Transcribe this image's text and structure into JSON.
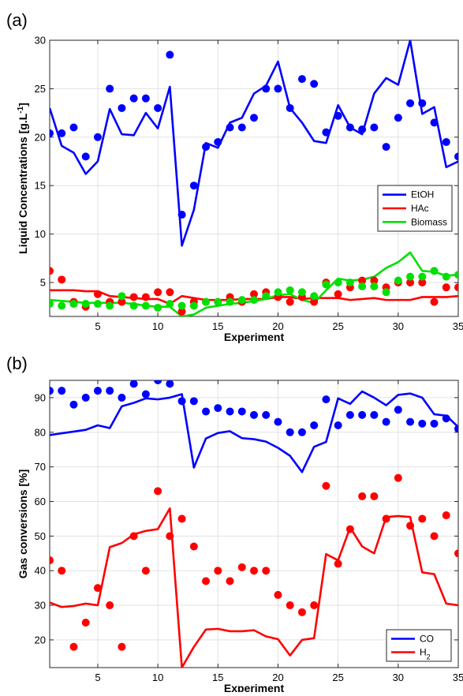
{
  "chart_data": [
    {
      "type": "line",
      "panel_label": "(a)",
      "xlabel": "Experiment",
      "ylabel": "Liquid Concentrations [g.L-1]",
      "ylabel_main": "Liquid Concentrations [g.L",
      "ylabel_sup": "-1",
      "ylabel_end": "]",
      "xlim": [
        1,
        35
      ],
      "ylim": [
        1.5,
        30
      ],
      "xticks": [
        5,
        10,
        15,
        20,
        25,
        30,
        35
      ],
      "yticks": [
        5,
        10,
        15,
        20,
        25,
        30
      ],
      "grid": true,
      "legend_position": "lower-right",
      "series": [
        {
          "name": "EtOH",
          "color": "#0000ff",
          "line": [
            23.0,
            19.1,
            18.4,
            16.2,
            17.5,
            22.9,
            20.3,
            20.2,
            22.5,
            20.9,
            25.2,
            8.8,
            12.5,
            19.4,
            18.9,
            21.5,
            22.0,
            24.5,
            25.3,
            27.8,
            23.0,
            21.5,
            19.6,
            19.4,
            23.3,
            21.0,
            20.3,
            24.5,
            26.1,
            25.4,
            30.0,
            22.4,
            23.1,
            16.9,
            17.5
          ],
          "points": [
            20.4,
            20.4,
            21.0,
            18.0,
            20.0,
            25.0,
            23.0,
            24.0,
            24.0,
            23.0,
            28.5,
            12.0,
            15.0,
            19.0,
            19.5,
            21.0,
            21.0,
            22.0,
            25.0,
            25.0,
            23.0,
            26.0,
            25.5,
            20.5,
            22.2,
            21.0,
            20.8,
            21.0,
            19.0,
            22.0,
            23.5,
            23.5,
            21.5,
            19.5,
            18.0
          ]
        },
        {
          "name": "HAc",
          "color": "#ff0000",
          "line": [
            4.2,
            4.2,
            4.2,
            4.1,
            4.1,
            3.6,
            3.5,
            3.4,
            3.3,
            3.3,
            2.8,
            3.6,
            3.4,
            3.2,
            3.2,
            3.2,
            3.3,
            3.3,
            3.3,
            3.5,
            3.5,
            3.3,
            3.4,
            3.4,
            3.4,
            3.2,
            3.3,
            3.4,
            3.2,
            3.2,
            3.2,
            3.5,
            3.5,
            3.5,
            3.6
          ],
          "points": [
            6.2,
            5.3,
            3.0,
            2.5,
            3.8,
            3.0,
            3.0,
            3.5,
            3.5,
            4.0,
            4.0,
            2.0,
            3.0,
            3.0,
            3.0,
            3.5,
            3.0,
            3.8,
            4.0,
            3.5,
            3.0,
            3.5,
            3.0,
            5.0,
            3.8,
            4.5,
            5.2,
            5.2,
            4.5,
            5.0,
            5.0,
            5.0,
            3.0,
            4.5,
            4.5
          ]
        },
        {
          "name": "Biomass",
          "color": "#00e000",
          "line": [
            3.2,
            3.1,
            3.0,
            2.9,
            2.9,
            2.9,
            2.9,
            2.8,
            2.6,
            2.5,
            2.5,
            1.5,
            1.7,
            2.4,
            2.6,
            2.8,
            2.9,
            3.1,
            3.3,
            3.7,
            3.8,
            3.2,
            2.9,
            4.2,
            5.4,
            5.2,
            5.3,
            5.6,
            6.5,
            7.1,
            8.1,
            6.2,
            6.1,
            5.7,
            5.8
          ],
          "points": [
            2.8,
            2.6,
            2.8,
            2.8,
            2.8,
            2.6,
            3.6,
            2.6,
            2.6,
            2.4,
            2.8,
            2.6,
            2.6,
            3.0,
            3.0,
            3.0,
            3.2,
            3.2,
            3.6,
            4.0,
            4.2,
            4.0,
            3.6,
            4.8,
            5.0,
            5.0,
            4.6,
            4.6,
            4.0,
            5.2,
            5.6,
            5.6,
            6.2,
            5.6,
            5.8
          ]
        }
      ]
    },
    {
      "type": "line",
      "panel_label": "(b)",
      "xlabel": "Experiment",
      "ylabel": "Gas conversions [%]",
      "xlim": [
        1,
        35
      ],
      "ylim": [
        12,
        95
      ],
      "xticks": [
        5,
        10,
        15,
        20,
        25,
        30,
        35
      ],
      "yticks": [
        20,
        30,
        40,
        50,
        60,
        70,
        80,
        90
      ],
      "grid": true,
      "legend_position": "lower-right",
      "series": [
        {
          "name": "CO",
          "color": "#0000ff",
          "line": [
            79.2,
            79.7,
            80.2,
            80.7,
            82.0,
            81.2,
            87.5,
            88.5,
            89.8,
            89.5,
            90.0,
            91.0,
            69.8,
            78.2,
            79.8,
            80.3,
            78.3,
            78.0,
            77.3,
            75.5,
            73.2,
            68.5,
            75.8,
            77.2,
            89.8,
            88.2,
            91.8,
            90.0,
            87.8,
            90.8,
            91.2,
            90.0,
            85.2,
            84.8,
            81.5
          ],
          "points": [
            92.0,
            92.0,
            88.0,
            90.0,
            92.0,
            92.0,
            90.0,
            94.0,
            91.0,
            95.0,
            94.0,
            89.0,
            89.0,
            86.0,
            87.0,
            86.0,
            86.0,
            85.0,
            85.0,
            83.0,
            80.0,
            80.0,
            82.0,
            89.5,
            82.0,
            85.0,
            85.0,
            85.0,
            83.0,
            86.5,
            83.0,
            82.5,
            82.5,
            84.0,
            81.0
          ]
        },
        {
          "name": "H2",
          "legend_main": "H",
          "legend_sub": "2",
          "color": "#ff0000",
          "line": [
            30.8,
            29.5,
            29.8,
            30.5,
            30.0,
            46.8,
            48.0,
            50.5,
            51.5,
            52.0,
            58.0,
            12.0,
            18.0,
            23.0,
            23.2,
            22.5,
            22.5,
            22.8,
            21.0,
            20.2,
            15.5,
            20.0,
            20.5,
            44.8,
            43.0,
            52.5,
            47.0,
            45.0,
            55.5,
            55.8,
            55.5,
            39.5,
            39.0,
            30.5,
            30.0
          ],
          "points": [
            43.0,
            40.0,
            18.0,
            25.0,
            35.0,
            30.0,
            18.0,
            50.0,
            40.0,
            63.0,
            50.0,
            55.0,
            47.0,
            37.0,
            40.0,
            37.0,
            41.0,
            40.0,
            40.0,
            33.0,
            30.0,
            28.0,
            30.0,
            64.5,
            42.0,
            52.0,
            61.5,
            61.5,
            55.0,
            66.8,
            53.0,
            55.0,
            50.0,
            56.0,
            45.0
          ]
        }
      ]
    }
  ]
}
